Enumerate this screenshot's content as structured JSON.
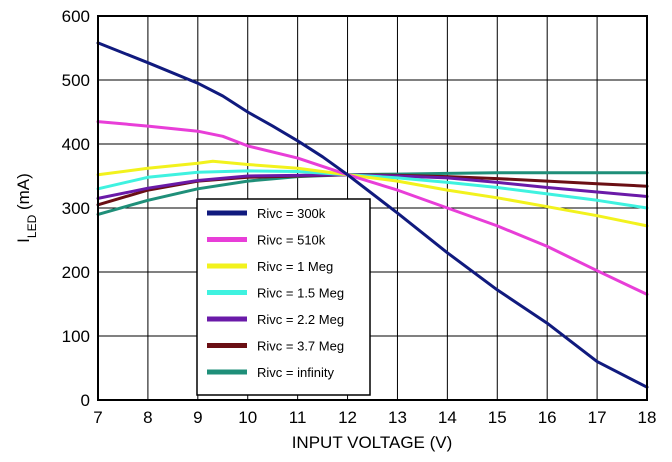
{
  "chart_data": {
    "type": "line",
    "xlabel": "INPUT VOLTAGE (V)",
    "ylabel_main": "I",
    "ylabel_sub": "LED",
    "ylabel_unit": " (mA)",
    "xlim": [
      7,
      18
    ],
    "ylim": [
      0,
      600
    ],
    "xticks": [
      "7",
      "8",
      "9",
      "10",
      "11",
      "12",
      "13",
      "14",
      "15",
      "16",
      "17",
      "18"
    ],
    "yticks": [
      "0",
      "100",
      "200",
      "300",
      "400",
      "500",
      "600"
    ],
    "grid": true,
    "legend_position": "lower-left",
    "series": [
      {
        "name": "Rivc = 300k",
        "color": "#101a7e",
        "x": [
          7,
          8,
          9,
          9.5,
          10,
          10.5,
          11,
          11.5,
          12,
          13,
          14,
          15,
          16,
          17,
          18
        ],
        "y": [
          558,
          527,
          495,
          475,
          450,
          428,
          405,
          380,
          352,
          292,
          230,
          172,
          120,
          60,
          20
        ]
      },
      {
        "name": "Rivc = 510k",
        "color": "#e83ed8",
        "x": [
          7,
          8,
          9,
          9.5,
          10,
          11,
          12,
          13,
          14,
          15,
          16,
          17,
          18
        ],
        "y": [
          435,
          428,
          420,
          412,
          397,
          378,
          352,
          328,
          300,
          272,
          240,
          202,
          165
        ]
      },
      {
        "name": "Rivc = 1 Meg",
        "color": "#f2f21d",
        "x": [
          7,
          8,
          9,
          9.3,
          10,
          11,
          12,
          13,
          14,
          15,
          16,
          17,
          18
        ],
        "y": [
          352,
          362,
          370,
          373,
          368,
          362,
          352,
          342,
          328,
          316,
          302,
          288,
          272
        ]
      },
      {
        "name": "Rivc = 1.5 Meg",
        "color": "#3ff2e0",
        "x": [
          7,
          8,
          9,
          10,
          11,
          12,
          13,
          14,
          15,
          16,
          17,
          18
        ],
        "y": [
          330,
          348,
          356,
          358,
          357,
          352,
          347,
          340,
          332,
          322,
          312,
          300
        ]
      },
      {
        "name": "Rivc = 2.2 Meg",
        "color": "#6a1aa8",
        "x": [
          7,
          8,
          9,
          10,
          11,
          12,
          13,
          14,
          15,
          16,
          17,
          18
        ],
        "y": [
          315,
          331,
          343,
          350,
          351,
          352,
          350,
          347,
          340,
          332,
          325,
          318
        ]
      },
      {
        "name": "Rivc = 3.7 Meg",
        "color": "#6a0f14",
        "x": [
          7,
          8,
          9,
          10,
          11,
          12,
          13,
          14,
          15,
          16,
          17,
          18
        ],
        "y": [
          305,
          328,
          342,
          348,
          350,
          352,
          351,
          349,
          346,
          342,
          338,
          334
        ]
      },
      {
        "name": "Rivc = infinity",
        "color": "#1f8f79",
        "x": [
          7,
          8,
          9,
          10,
          11,
          12,
          13,
          14,
          15,
          16,
          17,
          18
        ],
        "y": [
          290,
          312,
          330,
          342,
          349,
          352,
          353,
          354,
          355,
          355,
          355,
          355
        ]
      }
    ]
  }
}
